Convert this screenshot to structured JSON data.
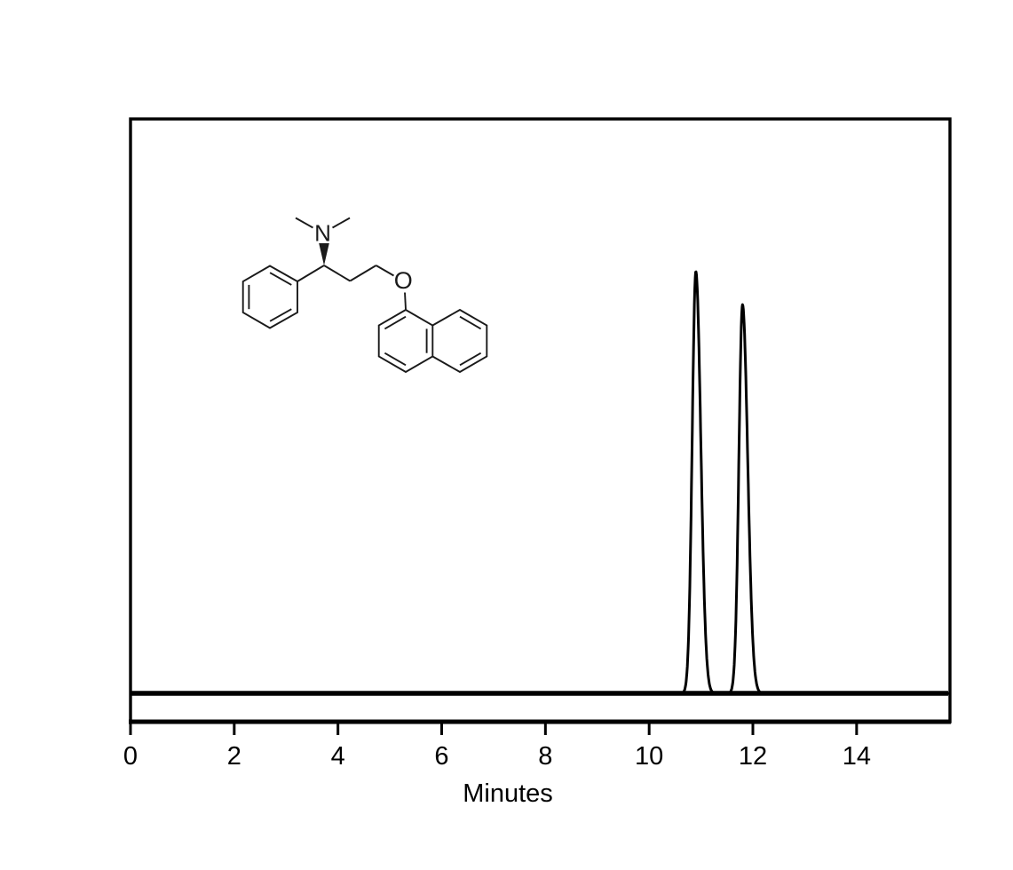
{
  "figure": {
    "background_color": "#ffffff",
    "frame_color": "#000000",
    "trace_color": "#000000",
    "structure_color": "#1a1a1a"
  },
  "chart_data": {
    "type": "line",
    "kind": "hplc-chromatogram",
    "title": "",
    "xlabel": "Minutes",
    "ylabel": "",
    "xlim": [
      0,
      15.8
    ],
    "x_ticks": [
      0,
      2,
      4,
      6,
      8,
      10,
      12,
      14
    ],
    "x_tick_labels": [
      "0",
      "2",
      "4",
      "6",
      "8",
      "10",
      "12",
      "14"
    ],
    "grid": false,
    "legend": false,
    "baseline_offset_frac": 0.047,
    "peaks": [
      {
        "retention_min": 10.9,
        "height_frac": 0.7,
        "sigma_left_min": 0.07,
        "sigma_right_min": 0.095
      },
      {
        "retention_min": 11.8,
        "height_frac": 0.645,
        "sigma_left_min": 0.07,
        "sigma_right_min": 0.1
      }
    ]
  },
  "molecule": {
    "name": "dapoxetine",
    "nitrogen_label": "N",
    "oxygen_label": "O"
  }
}
